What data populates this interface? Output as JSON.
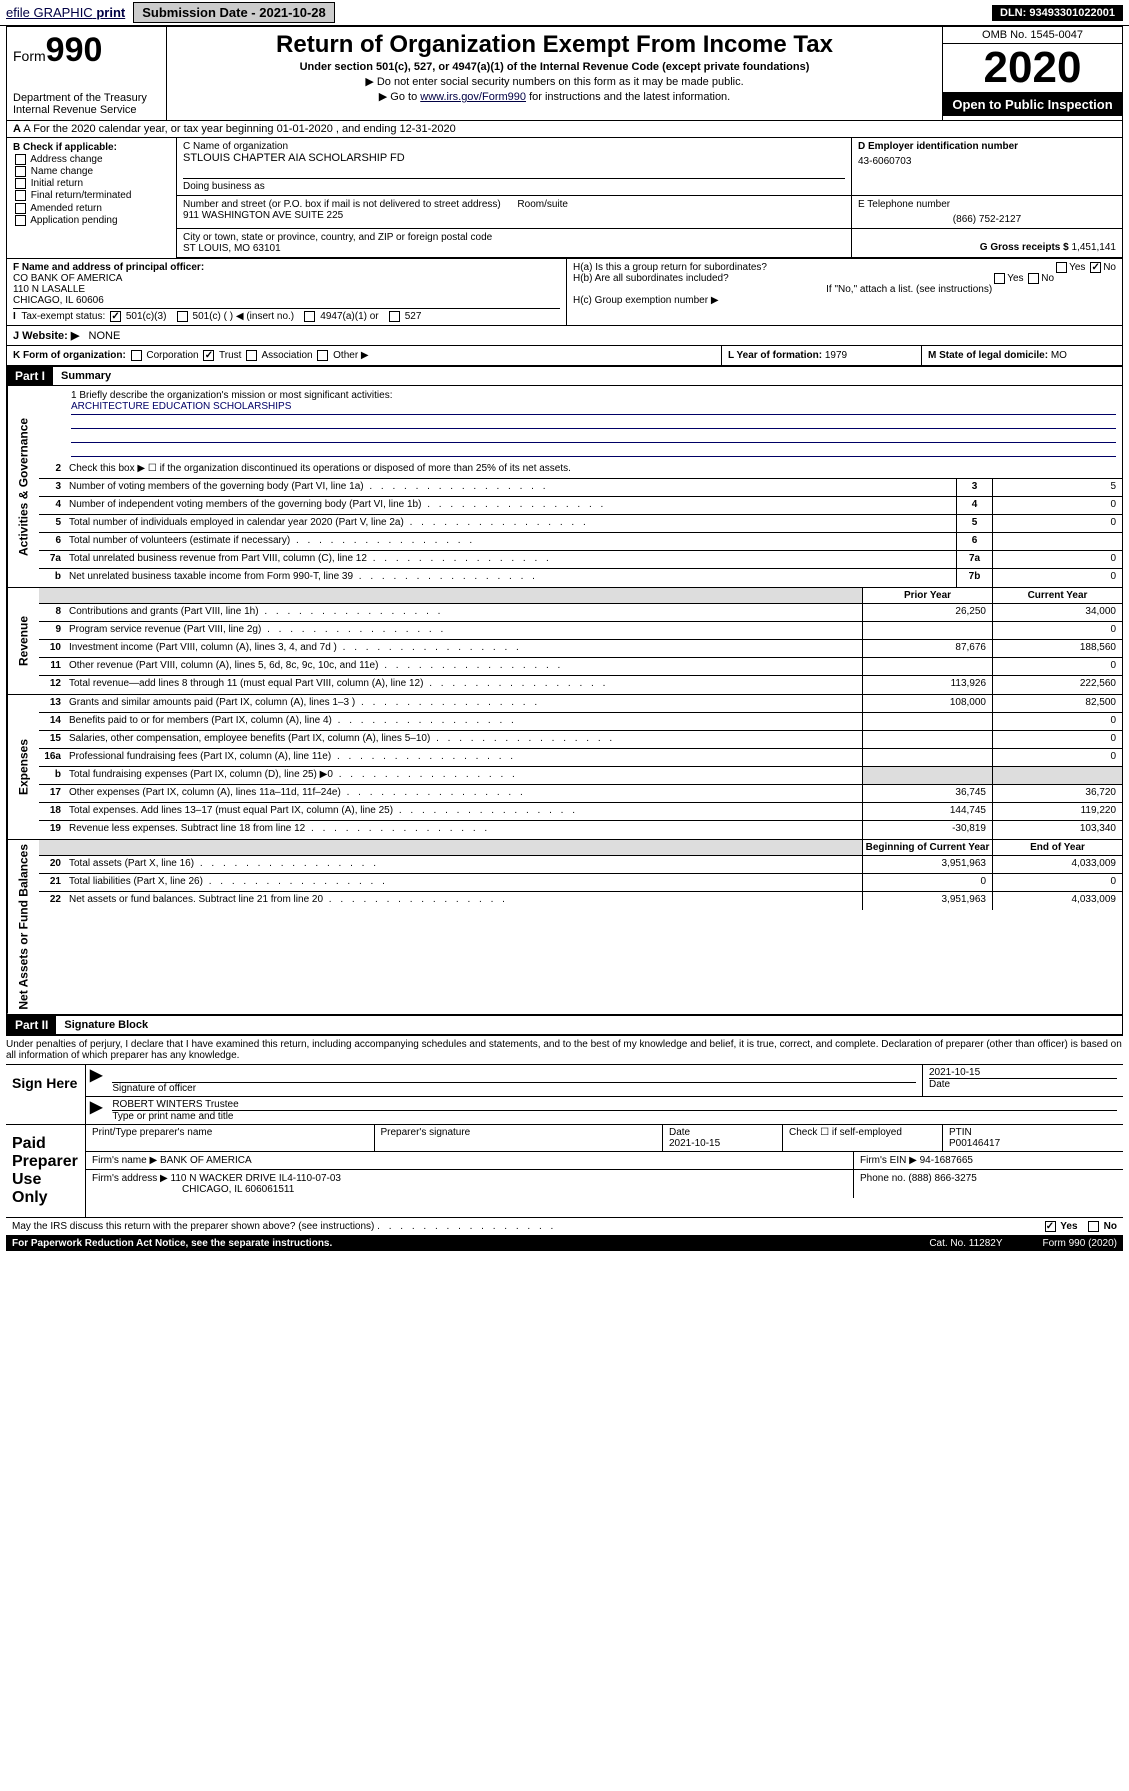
{
  "topbar": {
    "efile_label": "efile GRAPHIC",
    "print_label": "print",
    "submission_label": "Submission Date - 2021-10-28",
    "dln": "DLN: 93493301022001"
  },
  "header": {
    "form_word": "Form",
    "form_number": "990",
    "dept": "Department of the Treasury",
    "irs": "Internal Revenue Service",
    "title": "Return of Organization Exempt From Income Tax",
    "subtitle": "Under section 501(c), 527, or 4947(a)(1) of the Internal Revenue Code (except private foundations)",
    "note1": "▶ Do not enter social security numbers on this form as it may be made public.",
    "note2_pre": "▶ Go to ",
    "note2_link": "www.irs.gov/Form990",
    "note2_post": " for instructions and the latest information.",
    "omb": "OMB No. 1545-0047",
    "year": "2020",
    "open_public": "Open to Public Inspection"
  },
  "row_a": {
    "text": "A For the 2020 calendar year, or tax year beginning 01-01-2020      , and ending 12-31-2020"
  },
  "b": {
    "header": "B Check if applicable:",
    "opt1": "Address change",
    "opt2": "Name change",
    "opt3": "Initial return",
    "opt4": "Final return/terminated",
    "opt5": "Amended return",
    "opt6": "Application pending"
  },
  "c": {
    "label": "C Name of organization",
    "name": "STLOUIS CHAPTER AIA SCHOLARSHIP FD",
    "dba_label": "Doing business as",
    "addr_label": "Number and street (or P.O. box if mail is not delivered to street address)",
    "room_label": "Room/suite",
    "addr": "911 WASHINGTON AVE SUITE 225",
    "city_label": "City or town, state or province, country, and ZIP or foreign postal code",
    "city": "ST LOUIS, MO  63101"
  },
  "d": {
    "label": "D Employer identification number",
    "value": "43-6060703"
  },
  "e": {
    "label": "E Telephone number",
    "value": "(866) 752-2127"
  },
  "g": {
    "label": "G Gross receipts $",
    "value": "1,451,141"
  },
  "f": {
    "label": "F  Name and address of principal officer:",
    "line1": "CO BANK OF AMERICA",
    "line2": "110 N LASALLE",
    "line3": "CHICAGO, IL  60606"
  },
  "h": {
    "a": "H(a)  Is this a group return for subordinates?",
    "b": "H(b)  Are all subordinates included?",
    "b_note": "If \"No,\" attach a list. (see instructions)",
    "c": "H(c)  Group exemption number ▶",
    "yes": "Yes",
    "no": "No"
  },
  "i": {
    "label": "Tax-exempt status:",
    "o1": "501(c)(3)",
    "o2": "501(c) (  ) ◀ (insert no.)",
    "o3": "4947(a)(1) or",
    "o4": "527"
  },
  "j": {
    "label": "J   Website: ▶",
    "value": "NONE"
  },
  "k": {
    "label": "K Form of organization:",
    "corp": "Corporation",
    "trust": "Trust",
    "assoc": "Association",
    "other": "Other ▶"
  },
  "l": {
    "label": "L Year of formation:",
    "value": "1979"
  },
  "m": {
    "label": "M State of legal domicile:",
    "value": "MO"
  },
  "part1": {
    "header": "Part I",
    "title": "Summary",
    "q1": "1  Briefly describe the organization's mission or most significant activities:",
    "mission": "ARCHITECTURE EDUCATION SCHOLARSHIPS",
    "q2": "Check this box ▶ ☐  if the organization discontinued its operations or disposed of more than 25% of its net assets.",
    "side_gov": "Activities & Governance",
    "side_rev": "Revenue",
    "side_exp": "Expenses",
    "side_net": "Net Assets or Fund Balances",
    "prior": "Prior Year",
    "current": "Current Year",
    "beg": "Beginning of Current Year",
    "end": "End of Year",
    "lines_gov": [
      {
        "n": "3",
        "d": "Number of voting members of the governing body (Part VI, line 1a)",
        "box": "3",
        "v": "5"
      },
      {
        "n": "4",
        "d": "Number of independent voting members of the governing body (Part VI, line 1b)",
        "box": "4",
        "v": "0"
      },
      {
        "n": "5",
        "d": "Total number of individuals employed in calendar year 2020 (Part V, line 2a)",
        "box": "5",
        "v": "0"
      },
      {
        "n": "6",
        "d": "Total number of volunteers (estimate if necessary)",
        "box": "6",
        "v": ""
      },
      {
        "n": "7a",
        "d": "Total unrelated business revenue from Part VIII, column (C), line 12",
        "box": "7a",
        "v": "0"
      },
      {
        "n": "b",
        "d": "Net unrelated business taxable income from Form 990-T, line 39",
        "box": "7b",
        "v": "0"
      }
    ],
    "lines_rev": [
      {
        "n": "8",
        "d": "Contributions and grants (Part VIII, line 1h)",
        "p": "26,250",
        "c": "34,000"
      },
      {
        "n": "9",
        "d": "Program service revenue (Part VIII, line 2g)",
        "p": "",
        "c": "0"
      },
      {
        "n": "10",
        "d": "Investment income (Part VIII, column (A), lines 3, 4, and 7d )",
        "p": "87,676",
        "c": "188,560"
      },
      {
        "n": "11",
        "d": "Other revenue (Part VIII, column (A), lines 5, 6d, 8c, 9c, 10c, and 11e)",
        "p": "",
        "c": "0"
      },
      {
        "n": "12",
        "d": "Total revenue—add lines 8 through 11 (must equal Part VIII, column (A), line 12)",
        "p": "113,926",
        "c": "222,560"
      }
    ],
    "lines_exp": [
      {
        "n": "13",
        "d": "Grants and similar amounts paid (Part IX, column (A), lines 1–3 )",
        "p": "108,000",
        "c": "82,500"
      },
      {
        "n": "14",
        "d": "Benefits paid to or for members (Part IX, column (A), line 4)",
        "p": "",
        "c": "0"
      },
      {
        "n": "15",
        "d": "Salaries, other compensation, employee benefits (Part IX, column (A), lines 5–10)",
        "p": "",
        "c": "0"
      },
      {
        "n": "16a",
        "d": "Professional fundraising fees (Part IX, column (A), line 11e)",
        "p": "",
        "c": "0"
      },
      {
        "n": "b",
        "d": "Total fundraising expenses (Part IX, column (D), line 25) ▶0",
        "p": "shaded",
        "c": "shaded"
      },
      {
        "n": "17",
        "d": "Other expenses (Part IX, column (A), lines 11a–11d, 11f–24e)",
        "p": "36,745",
        "c": "36,720"
      },
      {
        "n": "18",
        "d": "Total expenses. Add lines 13–17 (must equal Part IX, column (A), line 25)",
        "p": "144,745",
        "c": "119,220"
      },
      {
        "n": "19",
        "d": "Revenue less expenses. Subtract line 18 from line 12",
        "p": "-30,819",
        "c": "103,340"
      }
    ],
    "lines_net": [
      {
        "n": "20",
        "d": "Total assets (Part X, line 16)",
        "p": "3,951,963",
        "c": "4,033,009"
      },
      {
        "n": "21",
        "d": "Total liabilities (Part X, line 26)",
        "p": "0",
        "c": "0"
      },
      {
        "n": "22",
        "d": "Net assets or fund balances. Subtract line 21 from line 20",
        "p": "3,951,963",
        "c": "4,033,009"
      }
    ]
  },
  "part2": {
    "header": "Part II",
    "title": "Signature Block",
    "penalties": "Under penalties of perjury, I declare that I have examined this return, including accompanying schedules and statements, and to the best of my knowledge and belief, it is true, correct, and complete. Declaration of preparer (other than officer) is based on all information of which preparer has any knowledge."
  },
  "sign": {
    "here": "Sign Here",
    "sig_officer": "Signature of officer",
    "date": "Date",
    "date_val": "2021-10-15",
    "name": "ROBERT WINTERS Trustee",
    "type_label": "Type or print name and title"
  },
  "paid": {
    "label": "Paid Preparer Use Only",
    "h1": "Print/Type preparer's name",
    "h2": "Preparer's signature",
    "h3": "Date",
    "h3v": "2021-10-15",
    "h4": "Check ☐ if self-employed",
    "h5": "PTIN",
    "h5v": "P00146417",
    "firm_name_l": "Firm's name      ▶",
    "firm_name": "BANK OF AMERICA",
    "firm_ein_l": "Firm's EIN ▶",
    "firm_ein": "94-1687665",
    "firm_addr_l": "Firm's address ▶",
    "firm_addr": "110 N WACKER DRIVE IL4-110-07-03",
    "firm_city": "CHICAGO, IL  606061511",
    "phone_l": "Phone no.",
    "phone": "(888) 866-3275"
  },
  "footer": {
    "discuss": "May the IRS discuss this return with the preparer shown above? (see instructions)",
    "yes": "Yes",
    "no": "No",
    "pra": "For Paperwork Reduction Act Notice, see the separate instructions.",
    "cat": "Cat. No. 11282Y",
    "form": "Form 990 (2020)"
  }
}
